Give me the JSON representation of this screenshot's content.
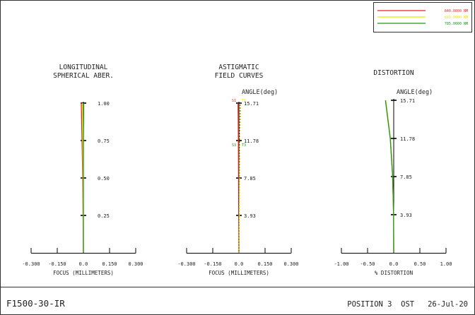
{
  "footer": {
    "lens_name": "F1500-30-IR",
    "position_label": "POSITION",
    "position_number": "3",
    "ost_label": "OST",
    "date": "26-Jul-20"
  },
  "legend": {
    "placement": "top-right",
    "entries": [
      {
        "label": "840.0000 NM",
        "color": "#ee2222"
      },
      {
        "label": "810.0000 NM",
        "color": "#e8e800"
      },
      {
        "label": "785.0000 NM",
        "color": "#1a9a1a"
      }
    ]
  },
  "colors": {
    "axis": "#000000",
    "text": "#222222",
    "red": "#ee2222",
    "yellow": "#e8e800",
    "green": "#1a9a1a"
  },
  "chart_data": [
    {
      "type": "line",
      "title_lines": [
        "LONGITUDINAL",
        "SPHERICAL ABER."
      ],
      "xlabel": "FOCUS (MILLIMETERS)",
      "xlim": [
        -0.3,
        0.3
      ],
      "xticks": [
        "-0.300",
        "-0.150",
        "0.0",
        "0.150",
        "0.300"
      ],
      "xtick_values": [
        -0.3,
        -0.15,
        0.0,
        0.15,
        0.3
      ],
      "ylim": [
        0,
        1.0
      ],
      "yticks": [
        "0.25",
        "0.50",
        "0.75",
        "1.00"
      ],
      "ytick_values": [
        0.25,
        0.5,
        0.75,
        1.0
      ],
      "axis_header": "",
      "series": [
        {
          "color_key": "red",
          "y": [
            0,
            0.25,
            0.5,
            0.75,
            1.0
          ],
          "x": [
            0,
            -0.002,
            -0.004,
            -0.008,
            -0.012
          ]
        },
        {
          "color_key": "yellow",
          "y": [
            0,
            0.25,
            0.5,
            0.75,
            1.0
          ],
          "x": [
            0,
            -0.001,
            -0.002,
            -0.004,
            -0.006
          ]
        },
        {
          "color_key": "green",
          "y": [
            0,
            0.25,
            0.5,
            0.75,
            1.0
          ],
          "x": [
            0,
            0.0,
            0.0,
            0.0,
            0.002
          ]
        }
      ]
    },
    {
      "type": "line",
      "title_lines": [
        "ASTIGMATIC",
        "FIELD CURVES"
      ],
      "axis_header": "ANGLE(deg)",
      "xlabel": "FOCUS (MILLIMETERS)",
      "xlim": [
        -0.3,
        0.3
      ],
      "xticks": [
        "-0.300",
        "-0.150",
        "0.0",
        "0.150",
        "0.300"
      ],
      "xtick_values": [
        -0.3,
        -0.15,
        0.0,
        0.15,
        0.3
      ],
      "ylim": [
        0,
        15.71
      ],
      "yticks": [
        "3.93",
        "7.85",
        "11.78",
        "15.71"
      ],
      "ytick_values": [
        3.93,
        7.85,
        11.78,
        15.71
      ],
      "curve_labels": [
        {
          "text": "S1",
          "color_key": "red",
          "angle": 15.71,
          "side": "left"
        },
        {
          "text": "T1",
          "color_key": "yellow",
          "angle": 15.71,
          "side": "right"
        },
        {
          "text": "S3",
          "color_key": "green",
          "angle": 11.78,
          "side": "left"
        },
        {
          "text": "T3",
          "color_key": "green",
          "angle": 11.78,
          "side": "right"
        }
      ],
      "series": [
        {
          "color_key": "green",
          "dashed": false,
          "y": [
            0,
            3.93,
            7.85,
            11.78,
            15.71
          ],
          "x": [
            0,
            0.0,
            -0.001,
            -0.002,
            -0.004
          ]
        },
        {
          "color_key": "red",
          "dashed": false,
          "y": [
            0,
            3.93,
            7.85,
            11.78,
            15.71
          ],
          "x": [
            0,
            -0.001,
            -0.002,
            -0.003,
            -0.005
          ]
        },
        {
          "color_key": "axis",
          "dashed": true,
          "y": [
            0,
            3.93,
            7.85,
            11.78,
            15.71
          ],
          "x": [
            0,
            0.001,
            0.002,
            0.004,
            0.008
          ]
        },
        {
          "color_key": "yellow",
          "dashed": true,
          "y": [
            0,
            3.93,
            7.85,
            11.78,
            15.71
          ],
          "x": [
            0,
            0.002,
            0.004,
            0.006,
            0.01
          ]
        }
      ]
    },
    {
      "type": "line",
      "title_lines": [
        "DISTORTION"
      ],
      "axis_header": "ANGLE(deg)",
      "xlabel": "% DISTORTION",
      "xlim": [
        -1.0,
        1.0
      ],
      "xticks": [
        "-1.00",
        "-0.50",
        "0.0",
        "0.50",
        "1.00"
      ],
      "xtick_values": [
        -1.0,
        -0.5,
        0.0,
        0.5,
        1.0
      ],
      "ylim": [
        0,
        15.71
      ],
      "yticks": [
        "3.93",
        "7.85",
        "11.78",
        "15.71"
      ],
      "ytick_values": [
        3.93,
        7.85,
        11.78,
        15.71
      ],
      "series": [
        {
          "color_key": "red",
          "y": [
            0,
            3.93,
            7.85,
            11.78,
            15.71
          ],
          "x": [
            0,
            -0.003,
            -0.02,
            -0.065,
            -0.155
          ]
        },
        {
          "color_key": "yellow",
          "y": [
            0,
            3.93,
            7.85,
            11.78,
            15.71
          ],
          "x": [
            0,
            -0.003,
            -0.019,
            -0.063,
            -0.152
          ]
        },
        {
          "color_key": "green",
          "y": [
            0,
            3.93,
            7.85,
            11.78,
            15.71
          ],
          "x": [
            0,
            -0.003,
            -0.02,
            -0.066,
            -0.158
          ]
        }
      ]
    }
  ]
}
